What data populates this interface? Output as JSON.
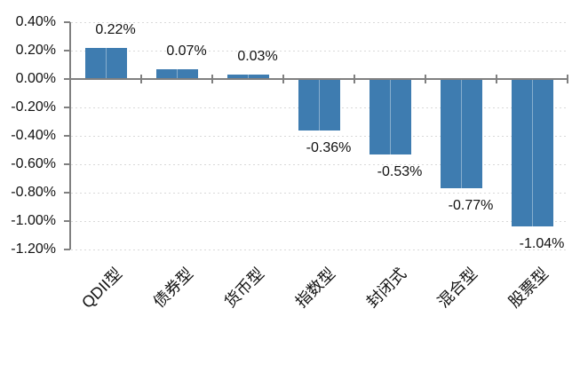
{
  "chart_data": {
    "type": "bar",
    "title": "",
    "xlabel": "",
    "ylabel": "",
    "categories": [
      "QDII型",
      "债券型",
      "货币型",
      "指数型",
      "封闭式",
      "混合型",
      "股票型"
    ],
    "values": [
      0.22,
      0.07,
      0.03,
      -0.36,
      -0.53,
      -0.77,
      -1.04
    ],
    "data_labels": [
      "0.22%",
      "0.07%",
      "0.03%",
      "-0.36%",
      "-0.53%",
      "-0.77%",
      "-1.04%"
    ],
    "unit": "%",
    "ylim": [
      -1.2,
      0.4
    ],
    "ytick_step": 0.2,
    "ytick_labels": [
      "0.40%",
      "0.20%",
      "0.00%",
      "-0.20%",
      "-0.40%",
      "-0.60%",
      "-0.80%",
      "-1.00%",
      "-1.20%"
    ],
    "grid": "horizontal-dashed",
    "legend_position": "none",
    "x_label_rotation_deg": 45,
    "colors": {
      "bar_fill": "#3E7CB0",
      "bar_center_highlight": "rgba(255,255,255,0.38)",
      "axis_line": "#808080",
      "gridline": "#D9D9D9",
      "label_text": "#111111",
      "background": "#FFFFFF"
    }
  }
}
